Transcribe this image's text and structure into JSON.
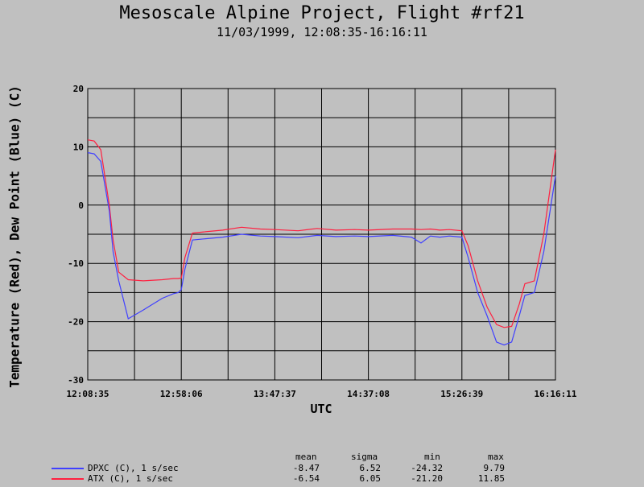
{
  "title": "Mesoscale Alpine Project, Flight #rf21",
  "subtitle": "11/03/1999, 12:08:35-16:16:11",
  "legend": {
    "headers": [
      "mean",
      "sigma",
      "min",
      "max"
    ],
    "rows": [
      {
        "label": "DPXC (C), 1 s/sec",
        "color": "#4040ff",
        "mean": "-8.47",
        "sigma": "6.52",
        "min": "-24.32",
        "max": "9.79"
      },
      {
        "label": "ATX (C), 1 s/sec",
        "color": "#ff2040",
        "mean": "-6.54",
        "sigma": "6.05",
        "min": "-21.20",
        "max": "11.85"
      }
    ]
  },
  "chart_data": {
    "type": "line",
    "title": "Mesoscale Alpine Project, Flight #rf21",
    "xlabel": "UTC",
    "ylabel": "Temperature (Red), Dew Point (Blue) (C)",
    "x_ticks": [
      "12:08:35",
      "12:58:06",
      "13:47:37",
      "14:37:08",
      "15:26:39",
      "16:16:11"
    ],
    "ylim": [
      -30,
      20
    ],
    "y_ticks": [
      -30,
      -20,
      -10,
      0,
      10,
      20
    ],
    "grid": true,
    "x": [
      "12:08:35",
      "12:12:00",
      "12:15:30",
      "12:20:00",
      "12:22:00",
      "12:25:00",
      "12:30:00",
      "12:38:00",
      "12:48:00",
      "12:54:00",
      "12:56:30",
      "12:58:06",
      "13:00:00",
      "13:04:00",
      "13:10:00",
      "13:20:00",
      "13:30:00",
      "13:40:00",
      "13:47:37",
      "14:00:00",
      "14:10:00",
      "14:20:00",
      "14:30:00",
      "14:37:08",
      "14:50:00",
      "15:00:00",
      "15:05:00",
      "15:10:00",
      "15:15:00",
      "15:20:00",
      "15:26:39",
      "15:30:00",
      "15:35:00",
      "15:40:00",
      "15:45:00",
      "15:49:00",
      "15:53:00",
      "15:57:00",
      "16:00:00",
      "16:05:00",
      "16:10:00",
      "16:16:11"
    ],
    "series": [
      {
        "name": "ATX (C), 1 s/sec",
        "color": "#ff2040",
        "values": [
          11.2,
          11.0,
          9.5,
          0,
          -6,
          -11.5,
          -12.8,
          -13.0,
          -12.8,
          -12.6,
          -12.6,
          -12.5,
          -9,
          -4.8,
          -4.6,
          -4.3,
          -3.8,
          -4.1,
          -4.2,
          -4.4,
          -4.0,
          -4.3,
          -4.2,
          -4.3,
          -4.1,
          -4.1,
          -4.2,
          -4.1,
          -4.3,
          -4.2,
          -4.4,
          -7,
          -13,
          -17.5,
          -20.5,
          -21.0,
          -20.8,
          -17,
          -13.5,
          -13.0,
          -5,
          9.5
        ]
      },
      {
        "name": "DPXC (C), 1 s/sec",
        "color": "#4040ff",
        "values": [
          9.0,
          8.8,
          7.5,
          -1,
          -8,
          -13,
          -19.5,
          -18.0,
          -16.0,
          -15.2,
          -15.0,
          -14.5,
          -11,
          -6.0,
          -5.8,
          -5.5,
          -5.0,
          -5.3,
          -5.4,
          -5.6,
          -5.2,
          -5.4,
          -5.3,
          -5.4,
          -5.2,
          -5.5,
          -6.5,
          -5.3,
          -5.5,
          -5.3,
          -5.5,
          -9,
          -15,
          -19,
          -23.5,
          -24.0,
          -23.5,
          -19,
          -15.5,
          -15.0,
          -8,
          5.0
        ]
      }
    ]
  }
}
